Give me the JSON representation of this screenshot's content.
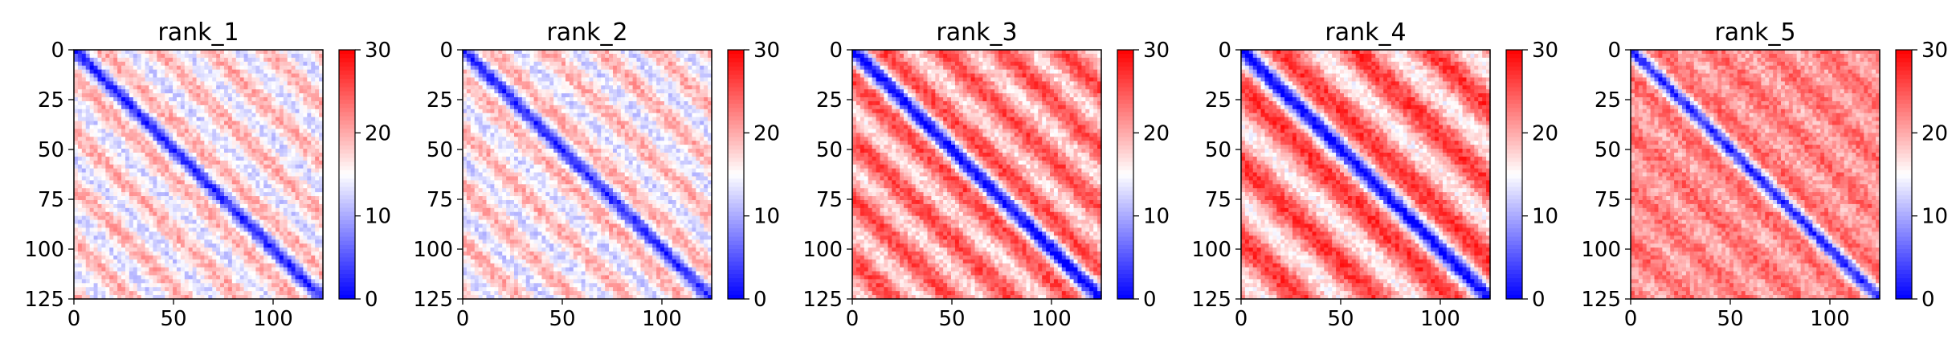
{
  "chart_data": [
    {
      "type": "heatmap",
      "title": "rank_1",
      "xticks": [
        0,
        50,
        100
      ],
      "yticks": [
        0,
        25,
        50,
        75,
        100,
        125
      ],
      "xlim": [
        0,
        125
      ],
      "ylim": [
        125,
        0
      ],
      "colorbar": {
        "ticks": [
          0,
          10,
          20,
          30
        ],
        "range": [
          0,
          30
        ],
        "colormap": "bwr"
      },
      "pattern": {
        "diag_value": 2,
        "diag_width": 3.2,
        "period": 27.5,
        "band_value": 10,
        "off_value": 20,
        "band_strength": 0.75
      }
    },
    {
      "type": "heatmap",
      "title": "rank_2",
      "xticks": [
        0,
        50,
        100
      ],
      "yticks": [
        0,
        25,
        50,
        75,
        100,
        125
      ],
      "xlim": [
        0,
        125
      ],
      "ylim": [
        125,
        0
      ],
      "colorbar": {
        "ticks": [
          0,
          10,
          20,
          30
        ],
        "range": [
          0,
          30
        ],
        "colormap": "bwr"
      },
      "pattern": {
        "diag_value": 2,
        "diag_width": 3.2,
        "period": 27.5,
        "band_value": 10,
        "off_value": 20,
        "band_strength": 0.75
      }
    },
    {
      "type": "heatmap",
      "title": "rank_3",
      "xticks": [
        0,
        50,
        100
      ],
      "yticks": [
        0,
        25,
        50,
        75,
        100,
        125
      ],
      "xlim": [
        0,
        125
      ],
      "ylim": [
        125,
        0
      ],
      "colorbar": {
        "ticks": [
          0,
          10,
          20,
          30
        ],
        "range": [
          0,
          30
        ],
        "colormap": "bwr"
      },
      "pattern": {
        "diag_value": 0,
        "diag_width": 4,
        "period": 30,
        "band_value": 12,
        "off_value": 26,
        "band_strength": 0.65
      }
    },
    {
      "type": "heatmap",
      "title": "rank_4",
      "xticks": [
        0,
        50,
        100
      ],
      "yticks": [
        0,
        25,
        50,
        75,
        100,
        125
      ],
      "xlim": [
        0,
        125
      ],
      "ylim": [
        125,
        0
      ],
      "colorbar": {
        "ticks": [
          0,
          10,
          20,
          30
        ],
        "range": [
          0,
          30
        ],
        "colormap": "bwr"
      },
      "pattern": {
        "diag_value": 0,
        "diag_width": 4,
        "period": 38,
        "band_value": 11,
        "off_value": 27,
        "band_strength": 0.7
      }
    },
    {
      "type": "heatmap",
      "title": "rank_5",
      "xticks": [
        0,
        50,
        100
      ],
      "yticks": [
        0,
        25,
        50,
        75,
        100,
        125
      ],
      "xlim": [
        0,
        125
      ],
      "ylim": [
        125,
        0
      ],
      "colorbar": {
        "ticks": [
          0,
          10,
          20,
          30
        ],
        "range": [
          0,
          30
        ],
        "colormap": "bwr"
      },
      "pattern": {
        "diag_value": 2,
        "diag_width": 3.5,
        "period": 27.5,
        "band_value": 16,
        "off_value": 24,
        "band_strength": 0.55
      }
    }
  ]
}
